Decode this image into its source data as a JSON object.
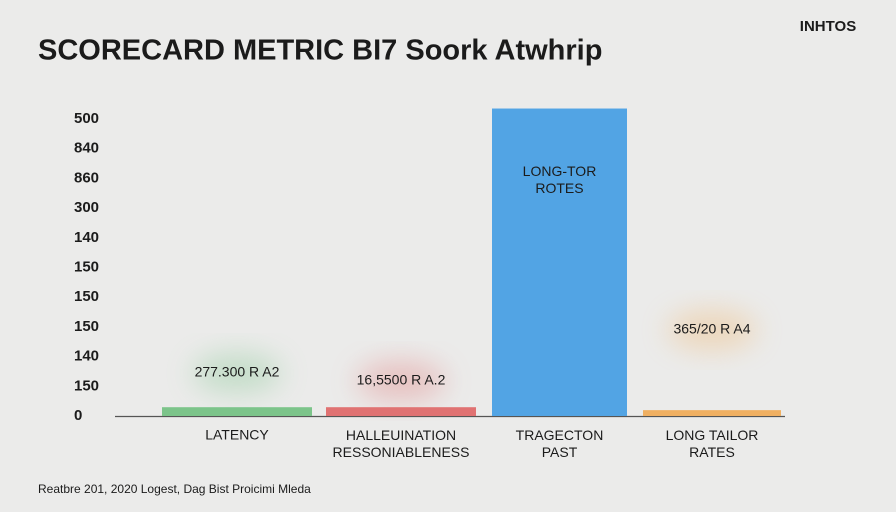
{
  "chart_data": {
    "type": "bar",
    "title": "SCORECARD METRIC BI7 Soork Atwhrip",
    "corner_label": "INHTOS",
    "footnote": "Reatbre 201, 2020 Logest, Dag Bist Proicimi Mleda",
    "categories": [
      "LATENCY",
      "HALLEUINATION\nRESSONIABLENESS",
      "TRAGECTON\nPAST",
      "LONG TAILOR\nRATES"
    ],
    "series": [
      {
        "name": null,
        "colors": [
          "#7cc48a",
          "#e07272",
          "#52a4e4",
          "#f0b062"
        ],
        "values": [
          15,
          15,
          524,
          10
        ]
      }
    ],
    "bar_labels": [
      "277.300 R A2",
      "16,5500 R A.2",
      "LONG-TOR\nROTES",
      "365/20 R A4"
    ],
    "y_axis_labels": [
      "500",
      "840",
      "860",
      "300",
      "140",
      "150",
      "150",
      "150",
      "140",
      "150",
      "0"
    ],
    "ylim": [
      0,
      530
    ]
  }
}
